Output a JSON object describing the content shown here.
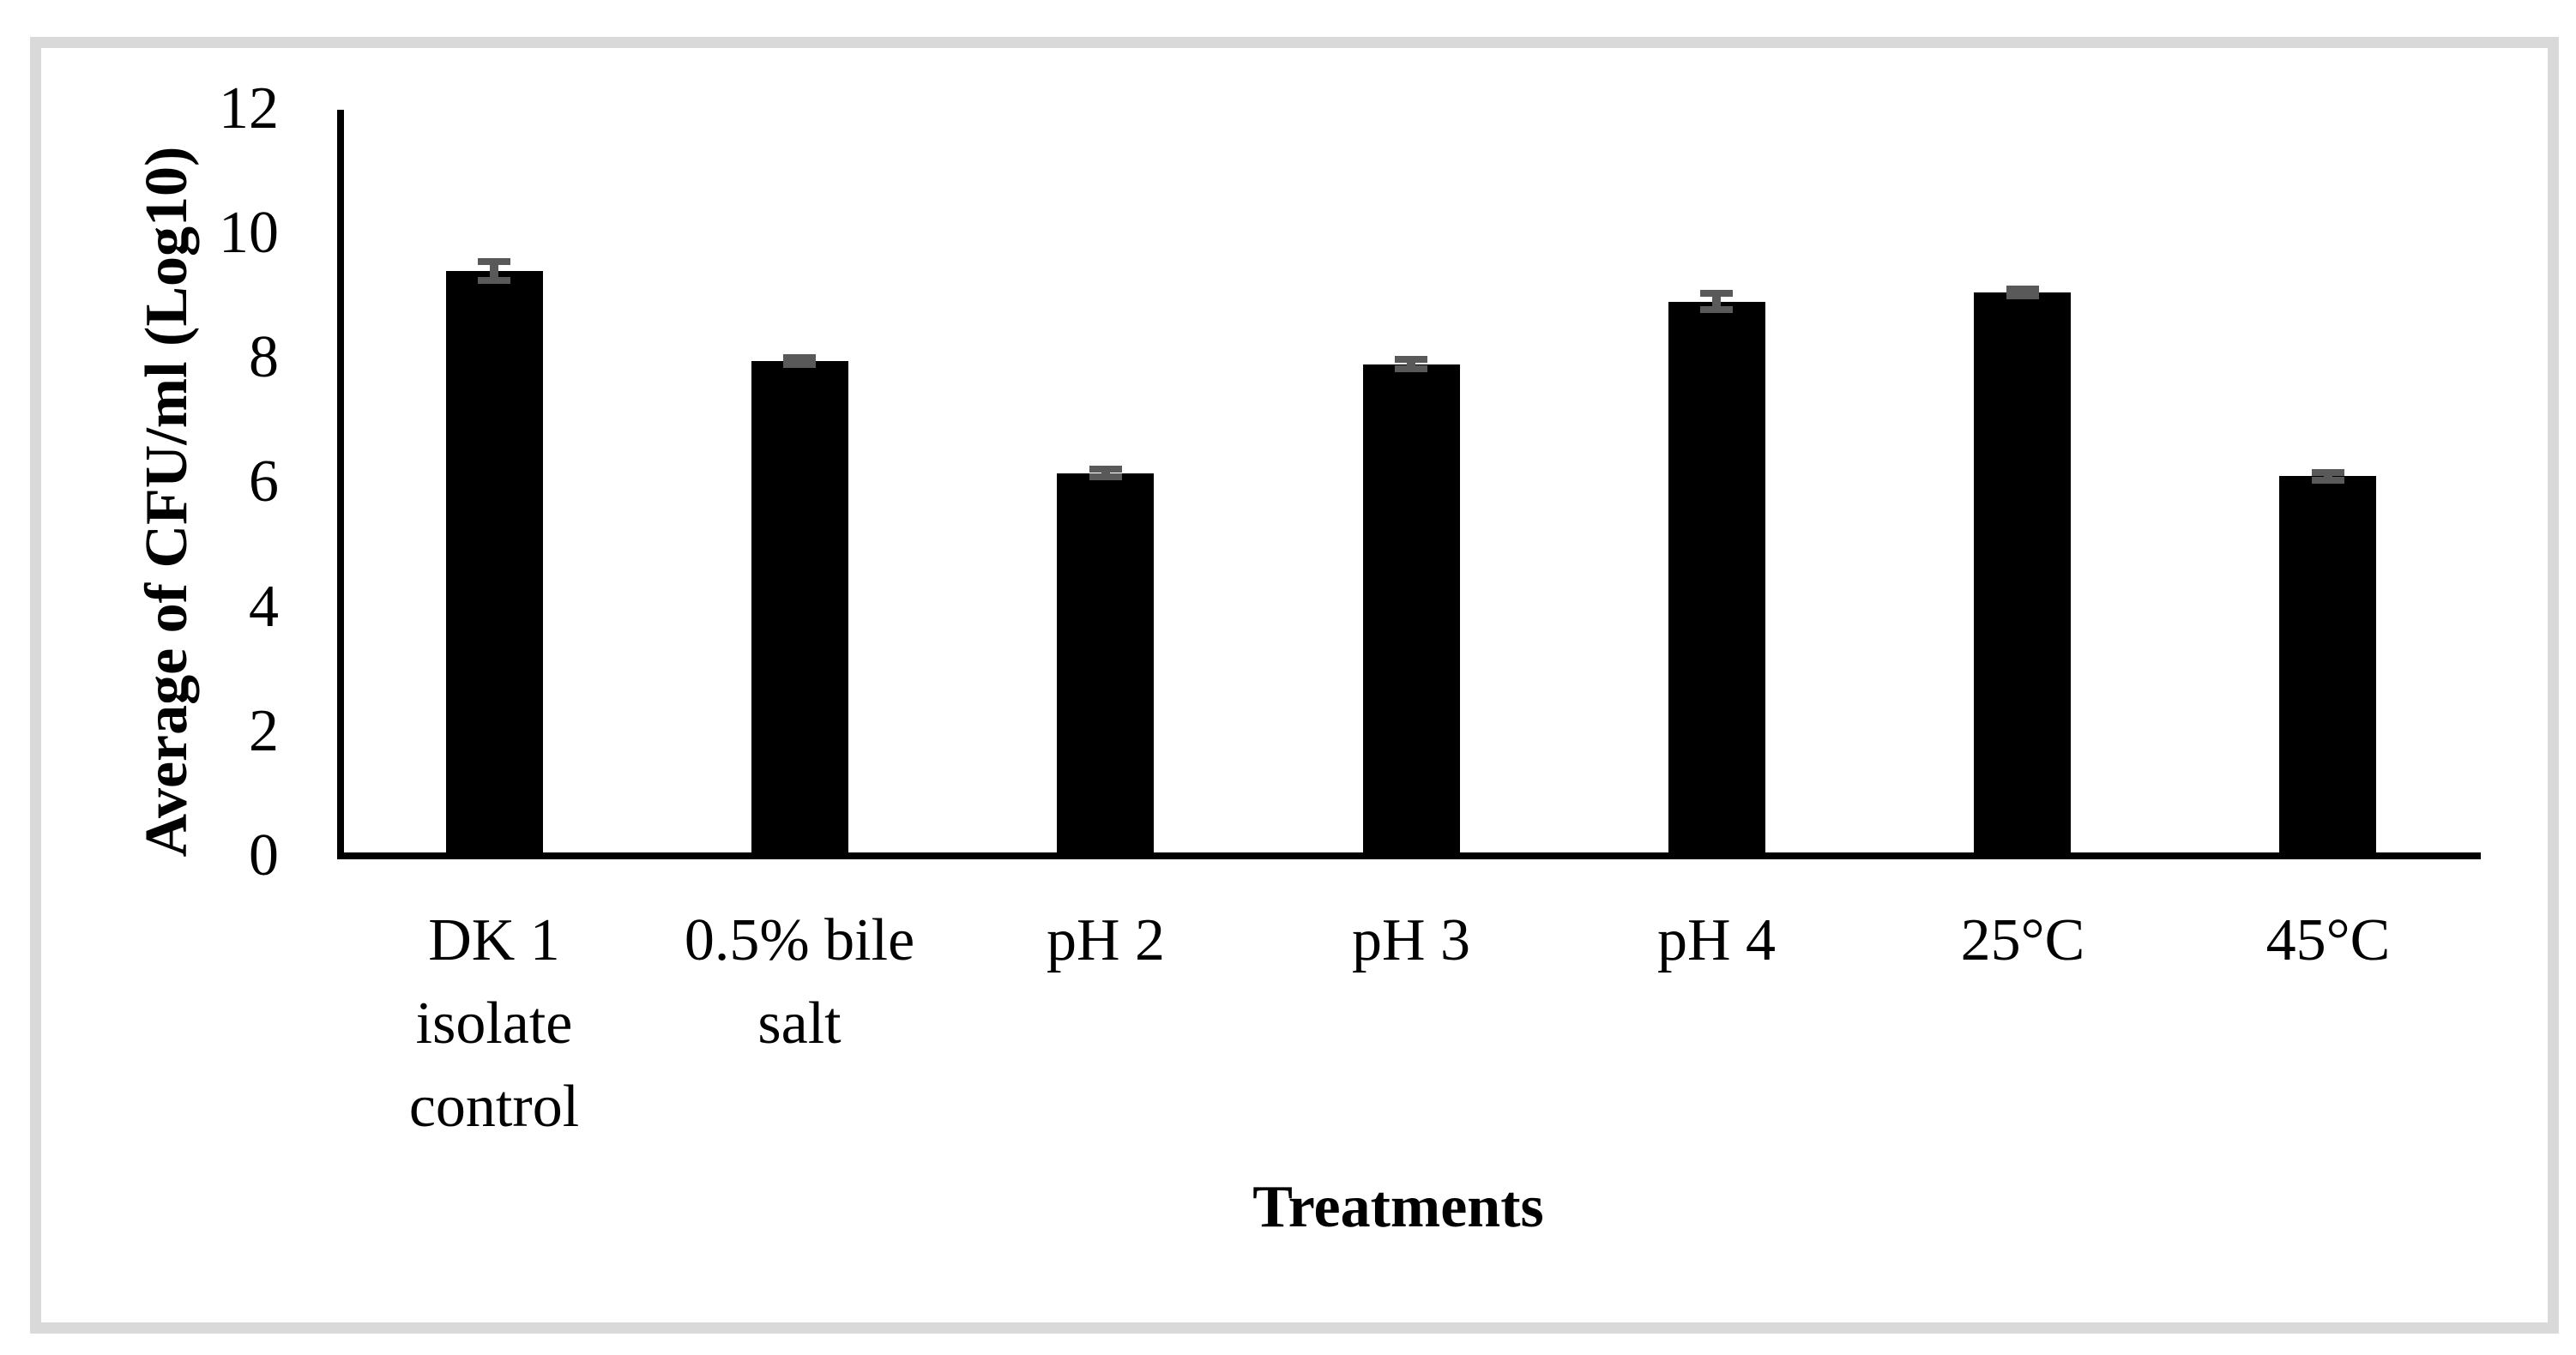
{
  "chart_data": {
    "type": "bar",
    "title": "",
    "xlabel": "Treatments",
    "ylabel": "Average of CFU/ml (Log10)",
    "categories": [
      "DK 1 isolate control",
      "0.5% bile salt",
      "pH 2",
      "pH 3",
      "pH 4",
      "25°C",
      "45°C"
    ],
    "category_lines": [
      [
        "DK 1",
        "isolate",
        "control"
      ],
      [
        "0.5% bile",
        "salt"
      ],
      [
        "pH 2"
      ],
      [
        "pH 3"
      ],
      [
        "pH 4"
      ],
      [
        "25°C"
      ],
      [
        "45°C"
      ]
    ],
    "values": [
      9.4,
      7.95,
      6.15,
      7.9,
      8.9,
      9.05,
      6.1
    ],
    "errors": [
      0.15,
      0.06,
      0.06,
      0.07,
      0.13,
      0.06,
      0.06
    ],
    "ylim": [
      0,
      12
    ],
    "yticks": [
      0,
      2,
      4,
      6,
      8,
      10,
      12
    ],
    "grid": false,
    "legend": null,
    "bar_color": "#000000",
    "error_color": "#595959",
    "frame_color": "#d9d9d9"
  }
}
